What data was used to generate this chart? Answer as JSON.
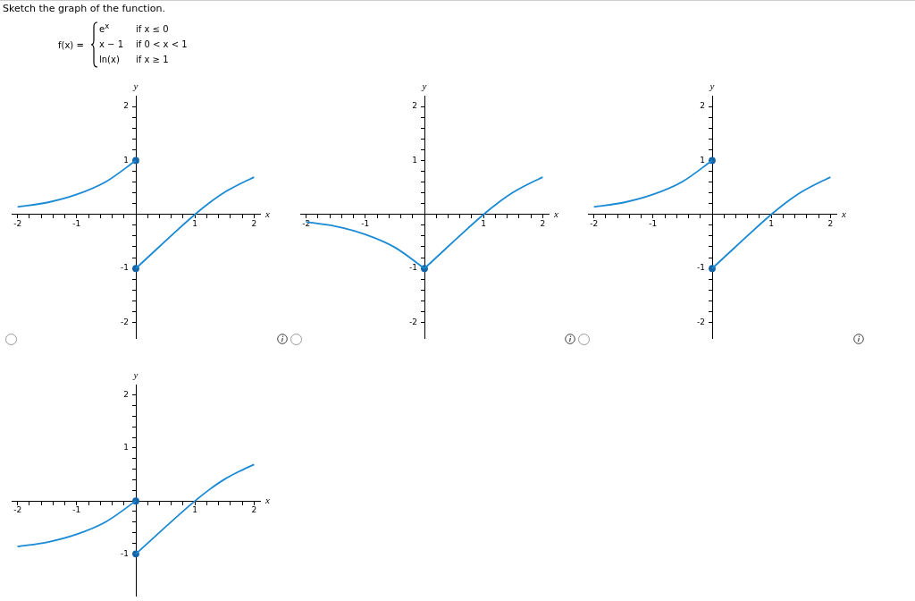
{
  "chart_data": [
    {
      "type": "other",
      "title": "Sketch the graph of the function.",
      "annotations": [
        "f(x) =",
        "e$^{x}$",
        "if x ≤ 0",
        "x − 1",
        "if 0 < x < 1",
        "ln(x)",
        "if x ≥ 1"
      ]
    },
    {
      "type": "line",
      "xlabel": "x",
      "ylabel": "y",
      "xlim": [
        -2.1,
        2.1
      ],
      "ylim": [
        -2.3,
        2.2
      ],
      "grid": false,
      "legend": false,
      "marker": "circle",
      "xticks": [
        -2,
        {
          "value": -1.8,
          "label": null
        },
        {
          "value": -1.6,
          "label": null
        },
        {
          "value": -1.4,
          "label": null
        },
        {
          "value": -1.2,
          "label": null
        },
        -1,
        {
          "value": -0.8,
          "label": null
        },
        {
          "value": -0.6,
          "label": null
        },
        {
          "value": -0.4,
          "label": null
        },
        {
          "value": -0.2,
          "label": null
        },
        {
          "value": 0.2,
          "label": null
        },
        {
          "value": 0.4,
          "label": null
        },
        {
          "value": 0.6,
          "label": null
        },
        {
          "value": 0.8,
          "label": null
        },
        1,
        {
          "value": 1.2,
          "label": null
        },
        {
          "value": 1.4,
          "label": null
        },
        {
          "value": 1.6,
          "label": null
        },
        {
          "value": 1.8,
          "label": null
        },
        2
      ],
      "yticks": [
        -2,
        {
          "value": -1.8,
          "label": null
        },
        {
          "value": -1.6,
          "label": null
        },
        {
          "value": -1.4,
          "label": null
        },
        {
          "value": -1.2,
          "label": null
        },
        -1,
        {
          "value": -0.8,
          "label": null
        },
        {
          "value": -0.6,
          "label": null
        },
        {
          "value": -0.4,
          "label": null
        },
        {
          "value": -0.2,
          "label": null
        },
        {
          "value": 0.2,
          "label": null
        },
        {
          "value": 0.4,
          "label": null
        },
        {
          "value": 0.6,
          "label": null
        },
        {
          "value": 0.8,
          "label": null
        },
        1,
        {
          "value": 1.2,
          "label": null
        },
        {
          "value": 1.4,
          "label": null
        },
        {
          "value": 1.6,
          "label": null
        },
        {
          "value": 1.8,
          "label": null
        },
        2
      ],
      "series": [
        {
          "type": "line",
          "marker": "none",
          "color": "#1a8ad4",
          "x": [
            -2,
            -1.5,
            -1,
            -0.5,
            0
          ],
          "values": [
            0.14,
            0.22,
            0.37,
            0.61,
            1
          ]
        },
        {
          "type": "line",
          "marker": "none",
          "color": "#1a8ad4",
          "x": [
            0,
            1,
            1.25,
            1.5,
            1.75,
            2
          ],
          "values": [
            -1,
            0,
            0.22,
            0.41,
            0.56,
            0.69
          ]
        },
        {
          "type": "scatter",
          "color": "#1565a8",
          "x": [
            0,
            0
          ],
          "values": [
            1,
            -1
          ]
        }
      ]
    },
    {
      "type": "line",
      "xlabel": "x",
      "ylabel": "y",
      "xlim": [
        -2.1,
        2.1
      ],
      "ylim": [
        -2.3,
        2.2
      ],
      "grid": false,
      "legend": false,
      "marker": "circle",
      "xticks": [
        -2,
        {
          "value": -1.8,
          "label": null
        },
        {
          "value": -1.6,
          "label": null
        },
        {
          "value": -1.4,
          "label": null
        },
        {
          "value": -1.2,
          "label": null
        },
        -1,
        {
          "value": -0.8,
          "label": null
        },
        {
          "value": -0.6,
          "label": null
        },
        {
          "value": -0.4,
          "label": null
        },
        {
          "value": -0.2,
          "label": null
        },
        {
          "value": 0.2,
          "label": null
        },
        {
          "value": 0.4,
          "label": null
        },
        {
          "value": 0.6,
          "label": null
        },
        {
          "value": 0.8,
          "label": null
        },
        1,
        {
          "value": 1.2,
          "label": null
        },
        {
          "value": 1.4,
          "label": null
        },
        {
          "value": 1.6,
          "label": null
        },
        {
          "value": 1.8,
          "label": null
        },
        2
      ],
      "yticks": [
        -2,
        {
          "value": -1.8,
          "label": null
        },
        {
          "value": -1.6,
          "label": null
        },
        {
          "value": -1.4,
          "label": null
        },
        {
          "value": -1.2,
          "label": null
        },
        -1,
        {
          "value": -0.8,
          "label": null
        },
        {
          "value": -0.6,
          "label": null
        },
        {
          "value": -0.4,
          "label": null
        },
        {
          "value": -0.2,
          "label": null
        },
        {
          "value": 0.2,
          "label": null
        },
        {
          "value": 0.4,
          "label": null
        },
        {
          "value": 0.6,
          "label": null
        },
        {
          "value": 0.8,
          "label": null
        },
        1,
        {
          "value": 1.2,
          "label": null
        },
        {
          "value": 1.4,
          "label": null
        },
        {
          "value": 1.6,
          "label": null
        },
        {
          "value": 1.8,
          "label": null
        },
        2
      ],
      "series": [
        {
          "type": "line",
          "marker": "none",
          "color": "#1a8ad4",
          "x": [
            -2,
            -1.5,
            -1,
            -0.5,
            0
          ],
          "values": [
            -0.14,
            -0.22,
            -0.37,
            -0.61,
            -1
          ]
        },
        {
          "type": "line",
          "marker": "none",
          "color": "#1a8ad4",
          "x": [
            0,
            1,
            1.25,
            1.5,
            1.75,
            2
          ],
          "values": [
            -1,
            0,
            0.22,
            0.41,
            0.56,
            0.69
          ]
        },
        {
          "type": "scatter",
          "color": "#1565a8",
          "x": [
            0
          ],
          "values": [
            -1
          ]
        }
      ]
    },
    {
      "type": "line",
      "xlabel": "x",
      "ylabel": "y",
      "xlim": [
        -2.1,
        2.1
      ],
      "ylim": [
        -2.3,
        2.2
      ],
      "grid": false,
      "legend": false,
      "marker": "circle",
      "xticks": [
        -2,
        {
          "value": -1.8,
          "label": null
        },
        {
          "value": -1.6,
          "label": null
        },
        {
          "value": -1.4,
          "label": null
        },
        {
          "value": -1.2,
          "label": null
        },
        -1,
        {
          "value": -0.8,
          "label": null
        },
        {
          "value": -0.6,
          "label": null
        },
        {
          "value": -0.4,
          "label": null
        },
        {
          "value": -0.2,
          "label": null
        },
        {
          "value": 0.2,
          "label": null
        },
        {
          "value": 0.4,
          "label": null
        },
        {
          "value": 0.6,
          "label": null
        },
        {
          "value": 0.8,
          "label": null
        },
        1,
        {
          "value": 1.2,
          "label": null
        },
        {
          "value": 1.4,
          "label": null
        },
        {
          "value": 1.6,
          "label": null
        },
        {
          "value": 1.8,
          "label": null
        },
        2
      ],
      "yticks": [
        -2,
        {
          "value": -1.8,
          "label": null
        },
        {
          "value": -1.6,
          "label": null
        },
        {
          "value": -1.4,
          "label": null
        },
        {
          "value": -1.2,
          "label": null
        },
        -1,
        {
          "value": -0.8,
          "label": null
        },
        {
          "value": -0.6,
          "label": null
        },
        {
          "value": -0.4,
          "label": null
        },
        {
          "value": -0.2,
          "label": null
        },
        {
          "value": 0.2,
          "label": null
        },
        {
          "value": 0.4,
          "label": null
        },
        {
          "value": 0.6,
          "label": null
        },
        {
          "value": 0.8,
          "label": null
        },
        1,
        {
          "value": 1.2,
          "label": null
        },
        {
          "value": 1.4,
          "label": null
        },
        {
          "value": 1.6,
          "label": null
        },
        {
          "value": 1.8,
          "label": null
        },
        2
      ],
      "series": [
        {
          "type": "line",
          "marker": "none",
          "color": "#1a8ad4",
          "x": [
            -2,
            -1.5,
            -1,
            -0.5,
            0
          ],
          "values": [
            0.14,
            0.22,
            0.37,
            0.61,
            1
          ]
        },
        {
          "type": "line",
          "marker": "none",
          "color": "#1a8ad4",
          "x": [
            0,
            1,
            1.25,
            1.5,
            1.75,
            2
          ],
          "values": [
            -1,
            0,
            0.22,
            0.41,
            0.56,
            0.69
          ]
        },
        {
          "type": "scatter",
          "color": "#1565a8",
          "x": [
            0,
            0
          ],
          "values": [
            1,
            -1
          ]
        }
      ]
    },
    {
      "type": "line",
      "xlabel": "x",
      "ylabel": "y",
      "xlim": [
        -2.1,
        2.1
      ],
      "ylim": [
        -1.8,
        2.2
      ],
      "grid": false,
      "legend": false,
      "marker": "circle",
      "xticks": [
        -2,
        {
          "value": -1.8,
          "label": null
        },
        {
          "value": -1.6,
          "label": null
        },
        {
          "value": -1.4,
          "label": null
        },
        {
          "value": -1.2,
          "label": null
        },
        -1,
        {
          "value": -0.8,
          "label": null
        },
        {
          "value": -0.6,
          "label": null
        },
        {
          "value": -0.4,
          "label": null
        },
        {
          "value": -0.2,
          "label": null
        },
        {
          "value": 0.2,
          "label": null
        },
        {
          "value": 0.4,
          "label": null
        },
        {
          "value": 0.6,
          "label": null
        },
        {
          "value": 0.8,
          "label": null
        },
        1,
        {
          "value": 1.2,
          "label": null
        },
        {
          "value": 1.4,
          "label": null
        },
        {
          "value": 1.6,
          "label": null
        },
        {
          "value": 1.8,
          "label": null
        },
        2
      ],
      "yticks": [
        -1,
        {
          "value": -0.8,
          "label": null
        },
        {
          "value": -0.6,
          "label": null
        },
        {
          "value": -0.4,
          "label": null
        },
        {
          "value": -0.2,
          "label": null
        },
        {
          "value": 0.2,
          "label": null
        },
        {
          "value": 0.4,
          "label": null
        },
        {
          "value": 0.6,
          "label": null
        },
        {
          "value": 0.8,
          "label": null
        },
        1,
        {
          "value": 1.2,
          "label": null
        },
        {
          "value": 1.4,
          "label": null
        },
        {
          "value": 1.6,
          "label": null
        },
        {
          "value": 1.8,
          "label": null
        },
        2
      ],
      "series": [
        {
          "type": "line",
          "marker": "none",
          "color": "#1a8ad4",
          "x": [
            -2,
            -1.5,
            -1,
            -0.5,
            0
          ],
          "values": [
            -0.86,
            -0.78,
            -0.63,
            -0.39,
            0
          ]
        },
        {
          "type": "line",
          "marker": "none",
          "color": "#1a8ad4",
          "x": [
            0,
            1,
            1.25,
            1.5,
            1.75,
            2
          ],
          "values": [
            -1,
            0,
            0.22,
            0.41,
            0.56,
            0.69
          ]
        },
        {
          "type": "scatter",
          "color": "#1565a8",
          "x": [
            0,
            0
          ],
          "values": [
            0,
            -1
          ]
        }
      ]
    }
  ]
}
